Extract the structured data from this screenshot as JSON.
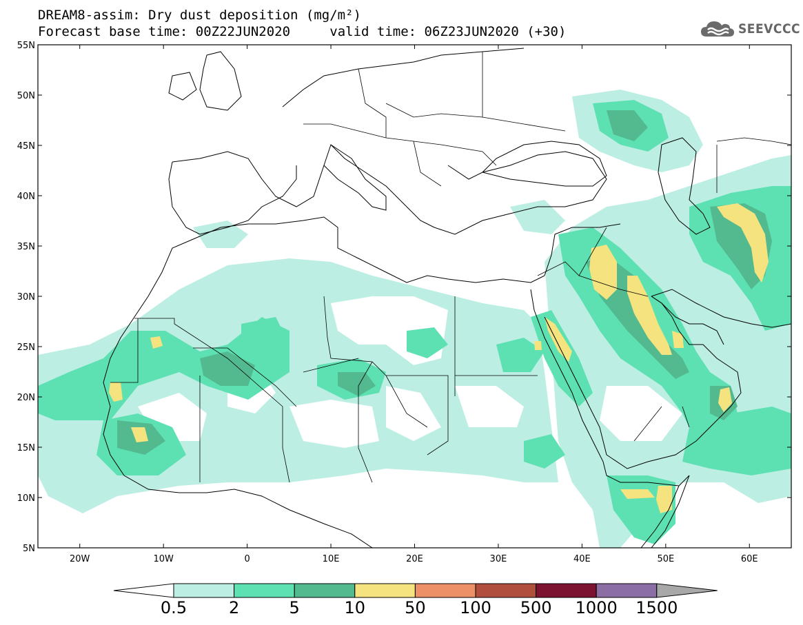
{
  "title": {
    "line1": "DREAM8-assim: Dry dust deposition (mg/m²)",
    "line2_left": "Forecast base time: 00Z22JUN2020",
    "line2_right": "valid time: 06Z23JUN2020 (+30)"
  },
  "logo": {
    "text": "SEEVCCC",
    "icon": "cloud-icon"
  },
  "map": {
    "lon_range": [
      -25,
      65
    ],
    "lat_range": [
      5,
      55
    ],
    "lat_labels": [
      "5N",
      "10N",
      "15N",
      "20N",
      "25N",
      "30N",
      "35N",
      "40N",
      "45N",
      "50N",
      "55N"
    ],
    "lon_labels": [
      "20W",
      "10W",
      "0",
      "10E",
      "20E",
      "30E",
      "40E",
      "50E",
      "60E"
    ]
  },
  "colorbar": {
    "labels": [
      "0.5",
      "2",
      "5",
      "10",
      "50",
      "100",
      "500",
      "1000",
      "1500"
    ],
    "colors": [
      "#bdeee3",
      "#5ee1b2",
      "#53b98f",
      "#f4e37e",
      "#eb9067",
      "#b04f3e",
      "#7c1331",
      "#8b6ea4",
      "#a8a8a8"
    ],
    "under_color": "#ffffff",
    "over_color": "#a8a8a8"
  }
}
